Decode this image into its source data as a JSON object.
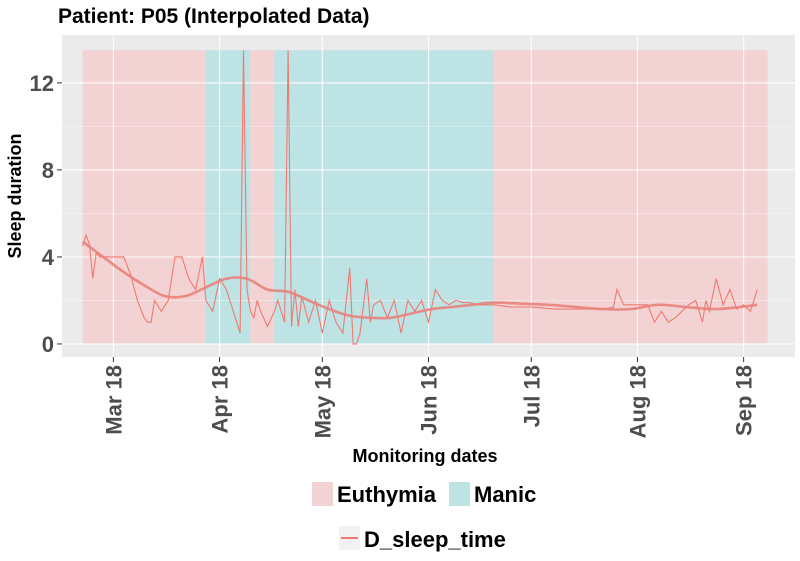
{
  "chart_data": {
    "type": "line",
    "title": "Patient: P05 (Interpolated Data)",
    "xlabel": "Monitoring dates",
    "ylabel": "Sleep duration",
    "x_tick_labels": [
      "Mar 18",
      "Apr 18",
      "May 18",
      "Jun 18",
      "Jul 18",
      "Aug 18",
      "Sep 18"
    ],
    "x_tick_dates": [
      "2018-03-01",
      "2018-04-01",
      "2018-05-01",
      "2018-06-01",
      "2018-07-01",
      "2018-08-01",
      "2018-09-01"
    ],
    "xlim": [
      "2018-02-14",
      "2018-09-16"
    ],
    "ylim": [
      -0.6,
      14.2
    ],
    "y_ticks": [
      0,
      4,
      8,
      12
    ],
    "grid": true,
    "legend_position": "bottom",
    "state_regions": [
      {
        "state": "Euthymia",
        "start": "2018-02-20",
        "end": "2018-03-28"
      },
      {
        "state": "Manic",
        "start": "2018-03-28",
        "end": "2018-04-10"
      },
      {
        "state": "Euthymia",
        "start": "2018-04-10",
        "end": "2018-04-17"
      },
      {
        "state": "Manic",
        "start": "2018-04-17",
        "end": "2018-06-20"
      },
      {
        "state": "Euthymia",
        "start": "2018-06-20",
        "end": "2018-09-08"
      }
    ],
    "region_ymax": 13.5,
    "legend_fill": [
      "Euthymia",
      "Manic"
    ],
    "colors": {
      "Euthymia": "#f2d2d2",
      "Manic": "#bde3e5",
      "line": "#f07a70",
      "smooth": "#e8827c",
      "panel": "#ebebeb",
      "grid": "#ffffff"
    },
    "series": [
      {
        "name": "D_sleep_time",
        "x": [
          "2018-02-20",
          "2018-02-21",
          "2018-02-22",
          "2018-02-23",
          "2018-02-24",
          "2018-02-25",
          "2018-02-26",
          "2018-02-28",
          "2018-03-02",
          "2018-03-04",
          "2018-03-06",
          "2018-03-08",
          "2018-03-09",
          "2018-03-10",
          "2018-03-11",
          "2018-03-12",
          "2018-03-13",
          "2018-03-15",
          "2018-03-17",
          "2018-03-19",
          "2018-03-21",
          "2018-03-23",
          "2018-03-25",
          "2018-03-27",
          "2018-03-28",
          "2018-03-30",
          "2018-04-01",
          "2018-04-03",
          "2018-04-05",
          "2018-04-07",
          "2018-04-08",
          "2018-04-09",
          "2018-04-10",
          "2018-04-11",
          "2018-04-12",
          "2018-04-13",
          "2018-04-15",
          "2018-04-17",
          "2018-04-18",
          "2018-04-20",
          "2018-04-21",
          "2018-04-22",
          "2018-04-23",
          "2018-04-24",
          "2018-04-25",
          "2018-04-27",
          "2018-04-29",
          "2018-05-01",
          "2018-05-03",
          "2018-05-05",
          "2018-05-07",
          "2018-05-09",
          "2018-05-10",
          "2018-05-11",
          "2018-05-12",
          "2018-05-14",
          "2018-05-15",
          "2018-05-16",
          "2018-05-18",
          "2018-05-20",
          "2018-05-22",
          "2018-05-24",
          "2018-05-26",
          "2018-05-28",
          "2018-05-30",
          "2018-06-01",
          "2018-06-03",
          "2018-06-05",
          "2018-06-07",
          "2018-06-09",
          "2018-06-11",
          "2018-06-13",
          "2018-06-15",
          "2018-06-17",
          "2018-06-20",
          "2018-06-25",
          "2018-07-01",
          "2018-07-08",
          "2018-07-15",
          "2018-07-22",
          "2018-07-25",
          "2018-07-26",
          "2018-07-28",
          "2018-08-01",
          "2018-08-04",
          "2018-08-06",
          "2018-08-08",
          "2018-08-10",
          "2018-08-12",
          "2018-08-14",
          "2018-08-16",
          "2018-08-18",
          "2018-08-20",
          "2018-08-21",
          "2018-08-22",
          "2018-08-24",
          "2018-08-26",
          "2018-08-28",
          "2018-08-30",
          "2018-09-01",
          "2018-09-03",
          "2018-09-05"
        ],
        "y": [
          4.5,
          5.0,
          4.6,
          3.0,
          4.2,
          4.0,
          4.0,
          4.0,
          4.0,
          4.0,
          3.2,
          2.0,
          1.6,
          1.2,
          1.0,
          1.0,
          2.0,
          1.5,
          2.0,
          4.0,
          4.0,
          3.0,
          2.5,
          4.0,
          2.0,
          1.5,
          3.0,
          2.5,
          1.5,
          0.5,
          13.5,
          2.5,
          1.5,
          1.2,
          2.0,
          1.5,
          0.8,
          1.5,
          2.0,
          1.0,
          13.5,
          0.8,
          2.5,
          0.8,
          2.2,
          1.0,
          2.0,
          0.5,
          2.0,
          1.0,
          0.5,
          3.5,
          0.0,
          0.0,
          0.5,
          3.0,
          1.0,
          1.8,
          2.0,
          1.2,
          2.0,
          0.5,
          2.0,
          1.5,
          2.0,
          1.0,
          2.5,
          2.0,
          1.8,
          2.0,
          1.9,
          1.9,
          1.8,
          1.8,
          1.8,
          1.7,
          1.7,
          1.6,
          1.6,
          1.6,
          1.7,
          2.5,
          1.8,
          1.8,
          1.8,
          1.0,
          1.5,
          1.0,
          1.2,
          1.5,
          1.8,
          2.0,
          1.0,
          2.0,
          1.5,
          3.0,
          1.8,
          2.5,
          1.6,
          1.8,
          1.5,
          2.5
        ]
      }
    ],
    "smooth": {
      "x": [
        "2018-02-20",
        "2018-02-26",
        "2018-03-04",
        "2018-03-10",
        "2018-03-16",
        "2018-03-22",
        "2018-03-28",
        "2018-04-03",
        "2018-04-09",
        "2018-04-15",
        "2018-04-21",
        "2018-04-27",
        "2018-05-03",
        "2018-05-09",
        "2018-05-15",
        "2018-05-21",
        "2018-05-27",
        "2018-06-02",
        "2018-06-08",
        "2018-06-14",
        "2018-06-20",
        "2018-06-28",
        "2018-07-06",
        "2018-07-14",
        "2018-07-22",
        "2018-07-30",
        "2018-08-07",
        "2018-08-15",
        "2018-08-23",
        "2018-08-31",
        "2018-09-05"
      ],
      "y": [
        4.7,
        4.0,
        3.3,
        2.7,
        2.2,
        2.2,
        2.6,
        3.0,
        3.0,
        2.5,
        2.4,
        2.0,
        1.6,
        1.3,
        1.2,
        1.2,
        1.4,
        1.6,
        1.7,
        1.8,
        1.9,
        1.85,
        1.8,
        1.7,
        1.6,
        1.6,
        1.8,
        1.7,
        1.6,
        1.7,
        1.8
      ]
    }
  }
}
